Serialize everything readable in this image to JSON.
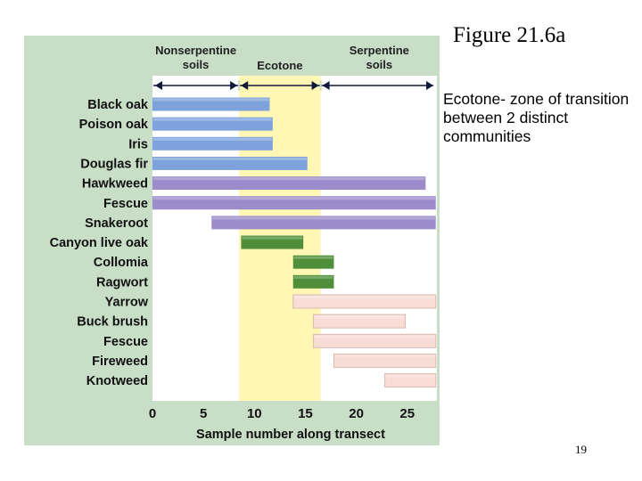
{
  "slide": {
    "title": "Figure 21.6a",
    "body": "Ecotone- zone of transition between 2 distinct communities",
    "page_number": "19"
  },
  "chart_data": {
    "type": "range-bar",
    "xlabel": "Sample number along transect",
    "xlim": [
      0,
      28
    ],
    "xticks": [
      0,
      5,
      10,
      15,
      20,
      25
    ],
    "zones": [
      {
        "label_lines": [
          "Nonserpentine",
          "soils"
        ],
        "range": [
          0,
          8.5
        ]
      },
      {
        "label_lines": [
          "Ecotone"
        ],
        "range": [
          8.5,
          16.5
        ]
      },
      {
        "label_lines": [
          "Serpentine",
          "soils"
        ],
        "range": [
          16.5,
          28
        ]
      }
    ],
    "ecotone_band": [
      8.5,
      16.5
    ],
    "colors": {
      "panel_bg": "#c8dec6",
      "plot_bg": "#ffffff",
      "ecotone_band": "#fff7b3",
      "blue": "#7ea3dc",
      "purple": "#9c8ccb",
      "green": "#4f8f3a",
      "pink": "#f8ddd6",
      "arrow_line": "#0f1a3a"
    },
    "species": [
      {
        "name": "Black oak",
        "start": 0,
        "end": 11.5,
        "color": "blue"
      },
      {
        "name": "Poison oak",
        "start": 0,
        "end": 11.8,
        "color": "blue"
      },
      {
        "name": "Iris",
        "start": 0,
        "end": 11.8,
        "color": "blue"
      },
      {
        "name": "Douglas fir",
        "start": 0,
        "end": 15.2,
        "color": "blue"
      },
      {
        "name": "Hawkweed",
        "start": 0,
        "end": 26.8,
        "color": "purple"
      },
      {
        "name": "Fescue",
        "start": 0,
        "end": 27.8,
        "color": "purple"
      },
      {
        "name": "Snakeroot",
        "start": 5.8,
        "end": 27.8,
        "color": "purple"
      },
      {
        "name": "Canyon live oak",
        "start": 8.7,
        "end": 14.8,
        "color": "green"
      },
      {
        "name": "Collomia",
        "start": 13.8,
        "end": 17.8,
        "color": "green"
      },
      {
        "name": "Ragwort",
        "start": 13.8,
        "end": 17.8,
        "color": "green"
      },
      {
        "name": "Yarrow",
        "start": 13.8,
        "end": 27.8,
        "color": "pink"
      },
      {
        "name": "Buck brush",
        "start": 15.8,
        "end": 24.8,
        "color": "pink"
      },
      {
        "name": "Fescue",
        "start": 15.8,
        "end": 27.8,
        "color": "pink"
      },
      {
        "name": "Fireweed",
        "start": 17.8,
        "end": 27.8,
        "color": "pink"
      },
      {
        "name": "Knotweed",
        "start": 22.8,
        "end": 27.8,
        "color": "pink"
      }
    ]
  }
}
